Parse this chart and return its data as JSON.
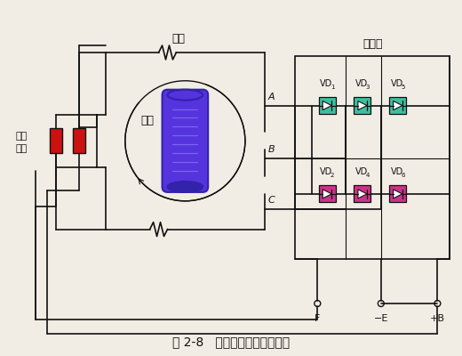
{
  "title": "图 2-8   交流发电机工作原理图",
  "bg_color": "#f2ede4",
  "stator_label": "定子",
  "rotor_label": "转子",
  "slip_ring_label1": "滑环",
  "slip_ring_label2": "电刷",
  "rectifier_label": "整流器",
  "vd_top_labels": [
    "VD",
    "VD",
    "VD"
  ],
  "vd_top_subs": [
    "1",
    "3",
    "5"
  ],
  "vd_bot_labels": [
    "VD",
    "VD",
    "VD"
  ],
  "vd_bot_subs": [
    "2",
    "4",
    "6"
  ],
  "phase_labels": [
    "A",
    "B",
    "C"
  ],
  "terminal_labels": [
    "F",
    "E",
    "B"
  ],
  "terminal_signs": [
    "",
    "−",
    "+"
  ],
  "green_color": "#3dbf9f",
  "magenta_color": "#cc3388",
  "red_color": "#cc1111",
  "line_color": "#111111",
  "rotor_blue": "#5533dd",
  "rotor_dark": "#3322aa",
  "rotor_line": "#7766ee"
}
